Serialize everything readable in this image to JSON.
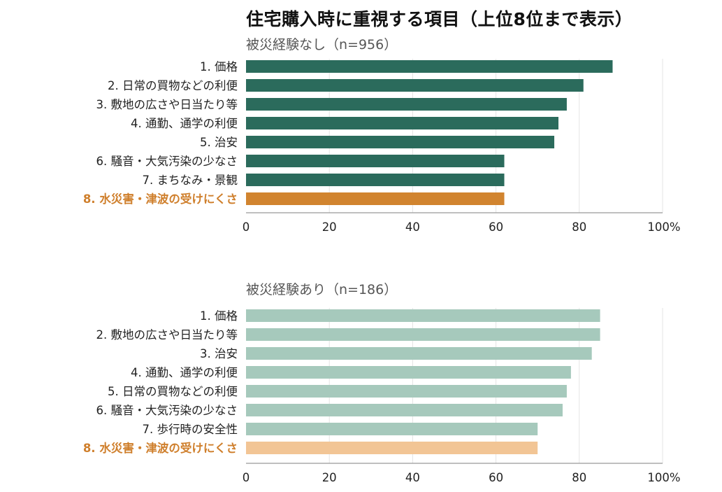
{
  "chart_title": "住宅購入時に重視する項目（上位8位まで表示）",
  "chart_data": [
    {
      "type": "bar",
      "orientation": "horizontal",
      "subtitle": "被災経験なし（n=956）",
      "categories": [
        "1. 価格",
        "2. 日常の買物などの利便",
        "3. 敷地の広さや日当たり等",
        "4. 通勤、通学の利便",
        "5. 治安",
        "6. 騒音・大気汚染の少なさ",
        "7. まちなみ・景観",
        "8. 水災害・津波の受けにくさ"
      ],
      "values": [
        88,
        81,
        77,
        75,
        74,
        62,
        62,
        62
      ],
      "highlight_index": 7,
      "xlim": [
        0,
        100
      ],
      "x_ticks": [
        "0",
        "20",
        "40",
        "60",
        "80",
        "100%"
      ],
      "grid": true,
      "colors": {
        "bar": "#2b6b5c",
        "highlight": "#d1842f"
      }
    },
    {
      "type": "bar",
      "orientation": "horizontal",
      "subtitle": "被災経験あり（n=186）",
      "categories": [
        "1. 価格",
        "2. 敷地の広さや日当たり等",
        "3. 治安",
        "4. 通勤、通学の利便",
        "5. 日常の買物などの利便",
        "6. 騒音・大気汚染の少なさ",
        "7. 歩行時の安全性",
        "8. 水災害・津波の受けにくさ"
      ],
      "values": [
        85,
        85,
        83,
        78,
        77,
        76,
        70,
        70
      ],
      "highlight_index": 7,
      "xlim": [
        0,
        100
      ],
      "x_ticks": [
        "0",
        "20",
        "40",
        "60",
        "80",
        "100%"
      ],
      "grid": true,
      "colors": {
        "bar": "#a6c9bc",
        "highlight": "#f2c595"
      }
    }
  ]
}
